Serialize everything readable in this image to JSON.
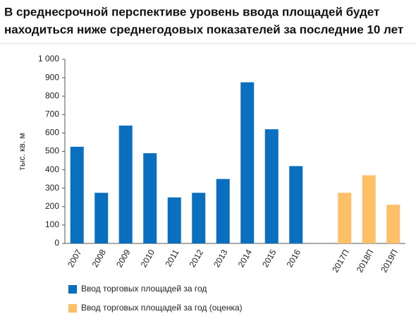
{
  "chart_data": {
    "type": "bar",
    "title": "В среднесрочной перспективе уровень ввода площадей будет",
    "subtitle": "находиться ниже среднегодовых показателей за последние 10 лет",
    "y_label": "тыс. кв. м",
    "categories": [
      "2007",
      "2008",
      "2009",
      "2010",
      "2011",
      "2012",
      "2013",
      "2014",
      "2015",
      "2016",
      null,
      "2017П",
      "2018П",
      "2019П"
    ],
    "series": [
      {
        "name": "Ввод торговых площадей за год",
        "color": "#0a6fbf",
        "values": [
          525,
          275,
          640,
          490,
          250,
          275,
          350,
          875,
          620,
          420,
          null,
          null,
          null,
          null
        ]
      },
      {
        "name": "Ввод торговых площадей за год (оценка)",
        "color": "#fdc069",
        "values": [
          null,
          null,
          null,
          null,
          null,
          null,
          null,
          null,
          null,
          null,
          null,
          275,
          370,
          210
        ]
      }
    ],
    "ylim": [
      0,
      1000
    ],
    "yticks": [
      0,
      100,
      200,
      300,
      400,
      500,
      600,
      700,
      800,
      900,
      {
        "value": 1000,
        "label": "1 000"
      }
    ],
    "grid": false
  }
}
